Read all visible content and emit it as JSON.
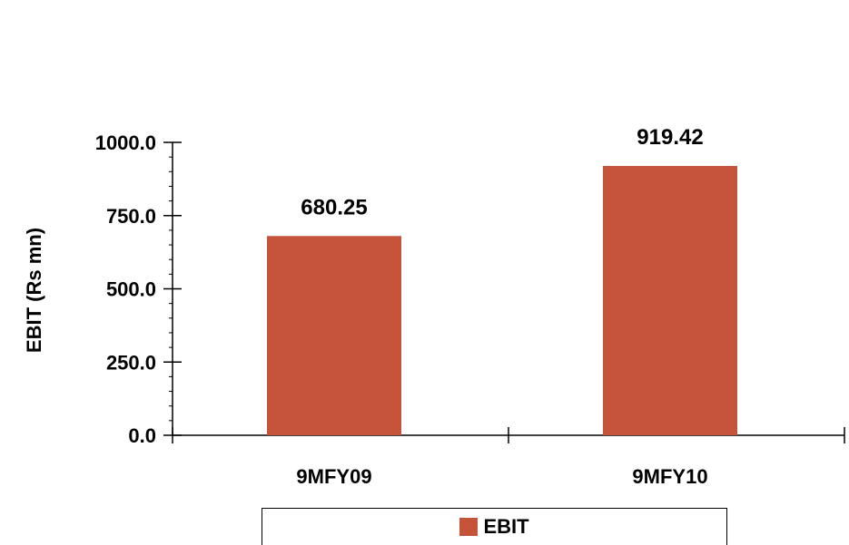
{
  "chart_data": {
    "type": "bar",
    "title": "",
    "xlabel": "",
    "ylabel": "EBIT (Rs mn)",
    "categories": [
      "9MFY09",
      "9MFY10"
    ],
    "series": [
      {
        "name": "EBIT",
        "values": [
          680.25,
          919.42
        ],
        "color": "#C5533A"
      }
    ],
    "data_labels": [
      "680.25",
      "919.42"
    ],
    "ylim": [
      0,
      1000
    ],
    "yticks": [
      0,
      250,
      500,
      750,
      1000
    ],
    "ytick_labels": [
      "0.0",
      "250.0",
      "500.0",
      "750.0",
      "1000.0"
    ],
    "grid": false,
    "legend_position": "bottom"
  }
}
